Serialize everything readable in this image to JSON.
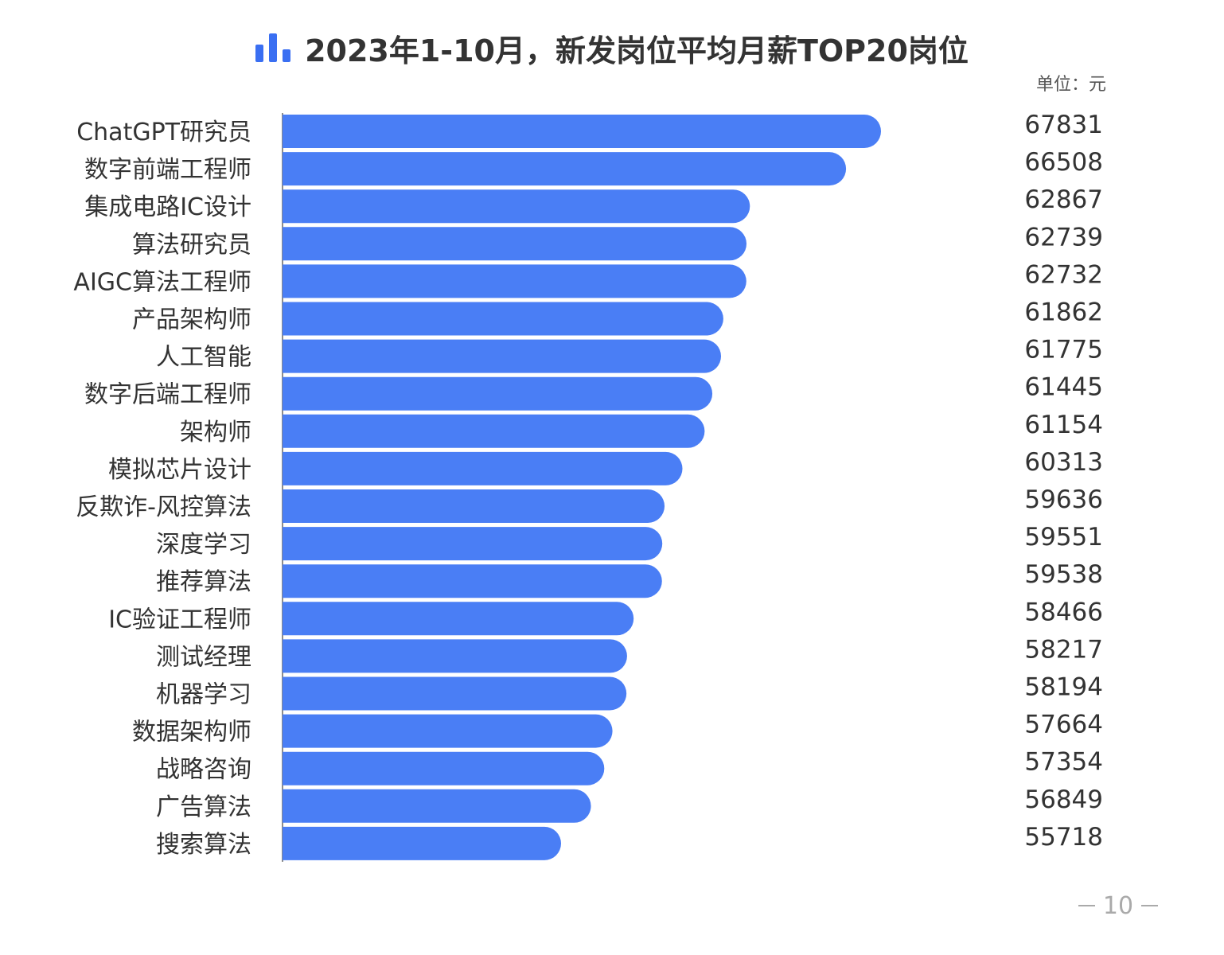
{
  "chart_data": {
    "type": "bar",
    "orientation": "horizontal",
    "title": "2023年1-10月，新发岗位平均月薪TOP20岗位",
    "unit_label": "单位：元",
    "categories": [
      "ChatGPT研究员",
      "数字前端工程师",
      "集成电路IC设计",
      "算法研究员",
      "AIGC算法工程师",
      "产品架构师",
      "人工智能",
      "数字后端工程师",
      "架构师",
      "模拟芯片设计",
      "反欺诈-风控算法",
      "深度学习",
      "推荐算法",
      "IC验证工程师",
      "测试经理",
      "机器学习",
      "数据架构师",
      "战略咨询",
      "广告算法",
      "搜索算法"
    ],
    "values": [
      67831,
      66508,
      62867,
      62739,
      62732,
      61862,
      61775,
      61445,
      61154,
      60313,
      59636,
      59551,
      59538,
      58466,
      58217,
      58194,
      57664,
      57354,
      56849,
      55718
    ],
    "value_labels": [
      "67831",
      "66508",
      "62867",
      "62739",
      "62732",
      "61862",
      "61775",
      "61445",
      "61154",
      "60313",
      "59636",
      "59551",
      "59538",
      "58466",
      "58217",
      "58194",
      "57664",
      "57354",
      "56849",
      "55718"
    ],
    "bar_color": "#4a7ef5",
    "grid": false,
    "legend": "none"
  },
  "colors": {
    "title_icon": "#3a6ff2",
    "bar": "#4a7ef5",
    "axis": "#666666"
  },
  "page": {
    "number": "10"
  }
}
